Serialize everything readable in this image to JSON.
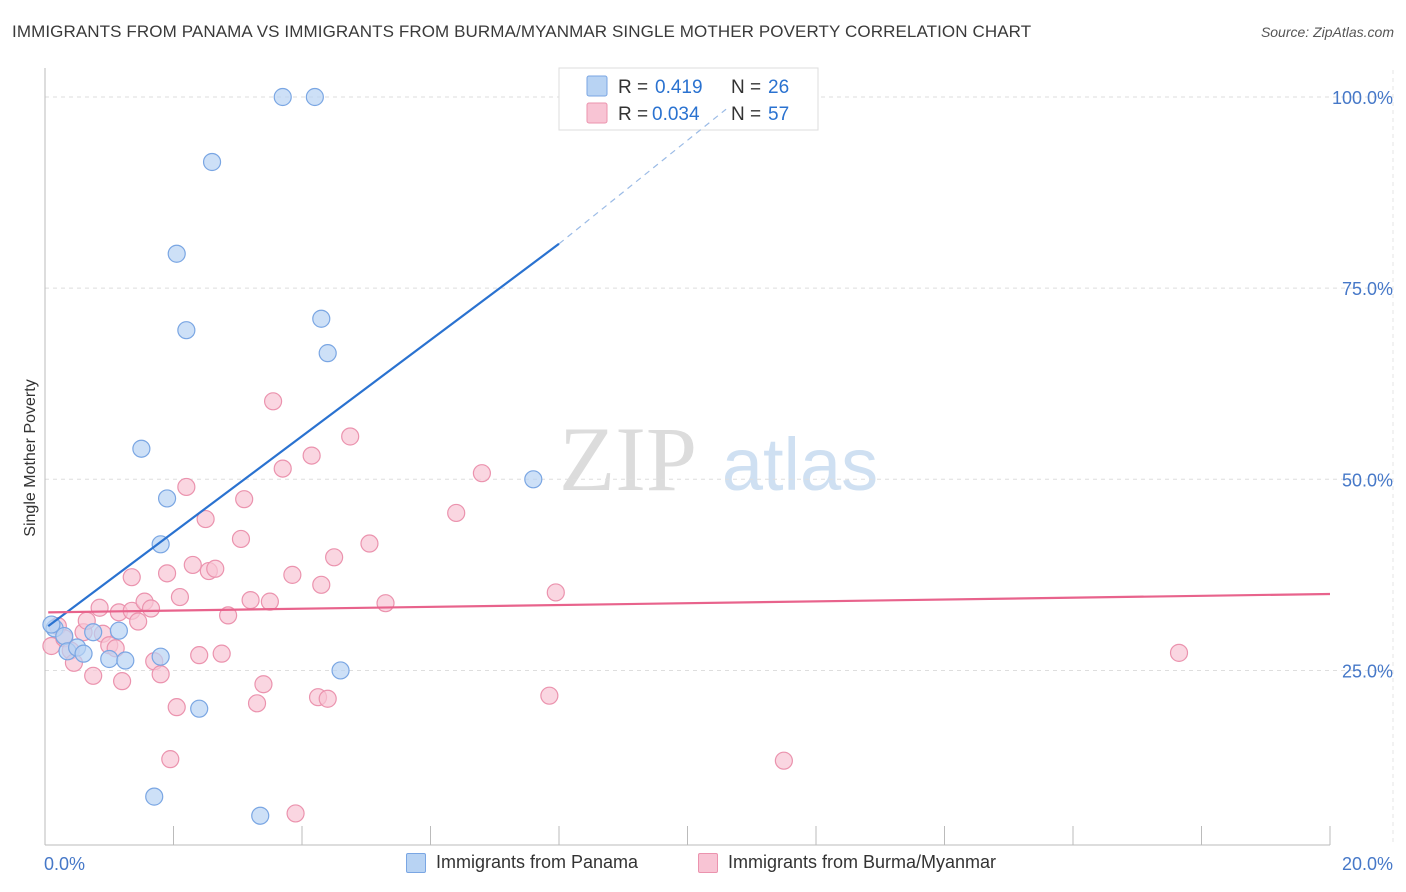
{
  "header": {
    "title": "IMMIGRANTS FROM PANAMA VS IMMIGRANTS FROM BURMA/MYANMAR SINGLE MOTHER POVERTY CORRELATION CHART",
    "source": "Source: ZipAtlas.com"
  },
  "watermark": {
    "zip": "ZIP",
    "atlas": "atlas"
  },
  "colors": {
    "blue_fill": "#b8d3f3",
    "blue_stroke": "#7aa6e3",
    "blue_line": "#2a72d0",
    "pink_fill": "#f8c4d4",
    "pink_stroke": "#eb93ae",
    "pink_line": "#e8638c",
    "tick_text": "#4678c8"
  },
  "legend_top": {
    "rows": [
      {
        "r_label": "R =",
        "r_value": "0.419",
        "n_label": "N =",
        "n_value": "26"
      },
      {
        "r_label": "R =",
        "r_value": "0.034",
        "n_label": "N =",
        "n_value": "57"
      }
    ]
  },
  "chart_data": {
    "type": "scatter",
    "title": "IMMIGRANTS FROM PANAMA VS IMMIGRANTS FROM BURMA/MYANMAR SINGLE MOTHER POVERTY CORRELATION CHART",
    "xlabel": "",
    "ylabel": "Single Mother Poverty",
    "xlim": [
      0,
      20
    ],
    "ylim": [
      0,
      102
    ],
    "x_tick_labels": {
      "min": "0.0%",
      "max": "20.0%"
    },
    "y_ticks": [
      {
        "value": 25,
        "label": "25.0%"
      },
      {
        "value": 50,
        "label": "50.0%"
      },
      {
        "value": 75,
        "label": "75.0%"
      },
      {
        "value": 100,
        "label": "100.0%"
      }
    ],
    "x_grid": [
      2,
      4,
      6,
      8,
      10,
      12,
      14,
      16,
      18,
      20
    ],
    "series": [
      {
        "name": "Immigrants from Panama",
        "color": "blue",
        "r": 0.419,
        "n": 26,
        "trend": {
          "x0": 0.05,
          "y0": 30.8,
          "x1": 8.0,
          "y1": 80.8,
          "dash_to_x": 10.6,
          "dash_to_y": 98.4
        },
        "points": [
          [
            0.15,
            30.5
          ],
          [
            0.3,
            29.5
          ],
          [
            0.35,
            27.5
          ],
          [
            0.5,
            28.0
          ],
          [
            0.75,
            30.0
          ],
          [
            1.0,
            26.5
          ],
          [
            1.15,
            30.2
          ],
          [
            1.25,
            26.3
          ],
          [
            1.5,
            54.0
          ],
          [
            1.7,
            8.5
          ],
          [
            1.8,
            41.5
          ],
          [
            1.8,
            26.8
          ],
          [
            1.9,
            47.5
          ],
          [
            2.05,
            79.5
          ],
          [
            2.2,
            69.5
          ],
          [
            2.4,
            20.0
          ],
          [
            2.6,
            91.5
          ],
          [
            3.35,
            6.0
          ],
          [
            3.7,
            100.0
          ],
          [
            4.2,
            100.0
          ],
          [
            4.3,
            71.0
          ],
          [
            4.4,
            66.5
          ],
          [
            4.6,
            25.0
          ],
          [
            7.6,
            50.0
          ],
          [
            0.1,
            31.0
          ],
          [
            0.6,
            27.2
          ]
        ]
      },
      {
        "name": "Immigrants from Burma/Myanmar",
        "color": "pink",
        "r": 0.034,
        "n": 57,
        "trend": {
          "x0": 0.05,
          "y0": 32.6,
          "x1": 20.0,
          "y1": 35.0
        },
        "points": [
          [
            0.1,
            28.2
          ],
          [
            0.2,
            30.8
          ],
          [
            0.3,
            29.2
          ],
          [
            0.4,
            27.6
          ],
          [
            0.45,
            26.0
          ],
          [
            0.6,
            30.0
          ],
          [
            0.65,
            31.5
          ],
          [
            0.75,
            24.3
          ],
          [
            0.85,
            33.2
          ],
          [
            0.9,
            29.8
          ],
          [
            1.0,
            28.3
          ],
          [
            1.1,
            27.9
          ],
          [
            1.15,
            32.6
          ],
          [
            1.2,
            23.6
          ],
          [
            1.35,
            32.8
          ],
          [
            1.35,
            37.2
          ],
          [
            1.45,
            31.4
          ],
          [
            1.55,
            34.0
          ],
          [
            1.65,
            33.1
          ],
          [
            1.7,
            26.2
          ],
          [
            1.8,
            24.5
          ],
          [
            1.9,
            37.7
          ],
          [
            1.95,
            13.4
          ],
          [
            2.05,
            20.2
          ],
          [
            2.1,
            34.6
          ],
          [
            2.2,
            49.0
          ],
          [
            2.3,
            38.8
          ],
          [
            2.4,
            27.0
          ],
          [
            2.5,
            44.8
          ],
          [
            2.55,
            38.0
          ],
          [
            2.65,
            38.3
          ],
          [
            2.75,
            27.2
          ],
          [
            2.85,
            32.2
          ],
          [
            3.05,
            42.2
          ],
          [
            3.1,
            47.4
          ],
          [
            3.2,
            34.2
          ],
          [
            3.3,
            20.7
          ],
          [
            3.4,
            23.2
          ],
          [
            3.5,
            34.0
          ],
          [
            3.55,
            60.2
          ],
          [
            3.7,
            51.4
          ],
          [
            3.85,
            37.5
          ],
          [
            3.9,
            6.3
          ],
          [
            4.15,
            53.1
          ],
          [
            4.25,
            21.5
          ],
          [
            4.3,
            36.2
          ],
          [
            4.4,
            21.3
          ],
          [
            4.5,
            39.8
          ],
          [
            4.75,
            55.6
          ],
          [
            5.05,
            41.6
          ],
          [
            5.3,
            33.8
          ],
          [
            6.4,
            45.6
          ],
          [
            6.8,
            50.8
          ],
          [
            7.85,
            21.7
          ],
          [
            7.95,
            35.2
          ],
          [
            11.5,
            13.2
          ],
          [
            17.65,
            27.3
          ]
        ]
      }
    ],
    "legend_bottom": [
      "Immigrants from Panama",
      "Immigrants from Burma/Myanmar"
    ]
  }
}
